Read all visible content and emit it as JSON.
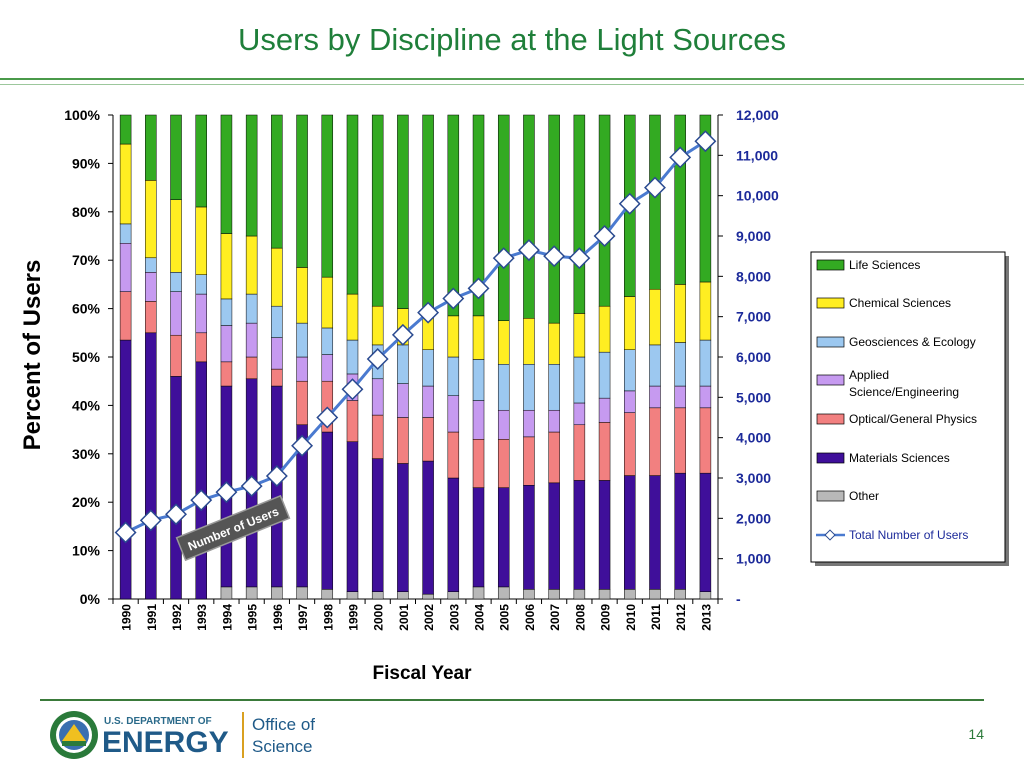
{
  "slide": {
    "title": "Users by Discipline at the Light Sources",
    "page_number": "14",
    "logo": {
      "agency": "U.S. DEPARTMENT OF",
      "name": "ENERGY",
      "office_line1": "Office of",
      "office_line2": "Science"
    }
  },
  "chart_data": {
    "type": "bar",
    "stacked": true,
    "title": "",
    "xlabel": "Fiscal Year",
    "ylabel": "Percent of Users",
    "ylim": [
      0,
      100
    ],
    "y_ticks": [
      "0%",
      "10%",
      "20%",
      "30%",
      "40%",
      "50%",
      "60%",
      "70%",
      "80%",
      "90%",
      "100%"
    ],
    "y2lim": [
      0,
      12000
    ],
    "y2_ticks": [
      "-",
      "1,000",
      "2,000",
      "3,000",
      "4,000",
      "5,000",
      "6,000",
      "7,000",
      "8,000",
      "9,000",
      "10,000",
      "11,000",
      "12,000"
    ],
    "categories": [
      "1990",
      "1991",
      "1992",
      "1993",
      "1994",
      "1995",
      "1996",
      "1997",
      "1998",
      "1999",
      "2000",
      "2001",
      "2002",
      "2003",
      "2004",
      "2005",
      "2006",
      "2007",
      "2008",
      "2009",
      "2010",
      "2011",
      "2012",
      "2013"
    ],
    "legend_position": "right",
    "annotation": "Number of Users",
    "series": [
      {
        "name": "Other",
        "color": "#b8b8b8",
        "values": [
          0,
          0,
          0,
          0,
          2.5,
          2.5,
          2.5,
          2.5,
          2,
          1.5,
          1.5,
          1.5,
          1,
          1.5,
          2.5,
          2.5,
          2,
          2,
          2,
          2,
          2,
          2,
          2,
          1.5
        ]
      },
      {
        "name": "Materials Sciences",
        "color": "#3f0f9a",
        "values": [
          53.5,
          55,
          46,
          49,
          41.5,
          43,
          41.5,
          33.5,
          32.5,
          31,
          27.5,
          26.5,
          27.5,
          23.5,
          20.5,
          20.5,
          21.5,
          22,
          22.5,
          22.5,
          23.5,
          23.5,
          24,
          24.5
        ]
      },
      {
        "name": "Optical/General Physics",
        "color": "#f28080",
        "values": [
          10,
          6.5,
          8.5,
          6,
          5,
          4.5,
          3.5,
          9,
          10.5,
          8.5,
          9,
          9.5,
          9,
          9.5,
          10,
          10,
          10,
          10.5,
          11.5,
          12,
          13,
          14,
          13.5,
          13.5
        ]
      },
      {
        "name": "Applied Science/Engineering",
        "color": "#c69af0",
        "values": [
          10,
          6,
          9,
          8,
          7.5,
          7,
          6.5,
          5,
          5.5,
          5.5,
          7.5,
          7,
          6.5,
          7.5,
          8,
          6,
          5.5,
          4.5,
          4.5,
          5,
          4.5,
          4.5,
          4.5,
          4.5
        ]
      },
      {
        "name": "Geosciences & Ecology",
        "color": "#9cc8f0",
        "values": [
          4,
          3,
          4,
          4,
          5.5,
          6,
          6.5,
          7,
          5.5,
          7,
          7,
          8,
          7.5,
          8,
          8.5,
          9.5,
          9.5,
          9.5,
          9.5,
          9.5,
          8.5,
          8.5,
          9,
          9.5
        ]
      },
      {
        "name": "Chemical Sciences",
        "color": "#ffee22",
        "values": [
          16.5,
          16,
          15,
          14,
          13.5,
          12,
          12,
          11.5,
          10.5,
          9.5,
          8,
          7.5,
          7,
          8.5,
          9,
          9,
          9.5,
          8.5,
          9,
          9.5,
          11,
          11.5,
          12,
          12
        ]
      },
      {
        "name": "Life Sciences",
        "color": "#33aa22",
        "values": [
          6,
          13.5,
          17.5,
          19,
          24.5,
          25,
          27.5,
          31.5,
          33.5,
          37,
          39.5,
          40,
          41.5,
          41.5,
          41.5,
          42.5,
          42,
          43,
          41,
          39.5,
          37.5,
          36,
          35,
          34.5
        ]
      }
    ],
    "line_series": {
      "name": "Total Number of Users",
      "color": "#4a7ad0",
      "axis": "secondary",
      "values": [
        1650,
        1950,
        2100,
        2450,
        2650,
        2800,
        3050,
        3800,
        4500,
        5200,
        5950,
        6550,
        7100,
        7450,
        7700,
        8450,
        8650,
        8500,
        8450,
        9000,
        9800,
        10200,
        10950,
        11350
      ]
    },
    "legend_order": [
      "Life Sciences",
      "Chemical Sciences",
      "Geosciences & Ecology",
      "Applied Science/Engineering",
      "Optical/General Physics",
      "Materials Sciences",
      "Other",
      "Total Number of Users"
    ]
  }
}
